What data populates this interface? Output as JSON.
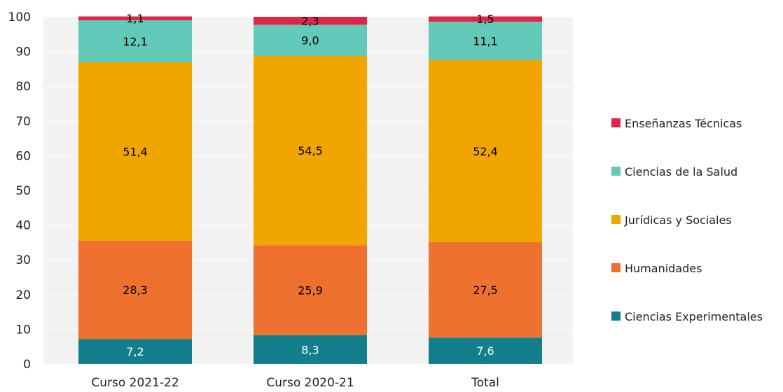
{
  "chart_data": {
    "type": "bar",
    "stacked": true,
    "categories": [
      "Curso 2021-22",
      "Curso 2020-21",
      "Total"
    ],
    "series": [
      {
        "name": "Ciencias Experimentales",
        "values": [
          7.2,
          8.3,
          7.6
        ],
        "labels": [
          "7,2",
          "8,3",
          "7,6"
        ],
        "color": "#137E8C",
        "label_color": "#ffffff"
      },
      {
        "name": "Humanidades",
        "values": [
          28.3,
          25.9,
          27.5
        ],
        "labels": [
          "28,3",
          "25,9",
          "27,5"
        ],
        "color": "#EE7130",
        "label_color": "#000000"
      },
      {
        "name": "Jurídicas y Sociales",
        "values": [
          51.4,
          54.5,
          52.4
        ],
        "labels": [
          "51,4",
          "54,5",
          "52,4"
        ],
        "color": "#F0A500",
        "label_color": "#000000"
      },
      {
        "name": "Ciencias de la Salud",
        "values": [
          12.1,
          9.0,
          11.1
        ],
        "labels": [
          "12,1",
          "9,0",
          "11,1"
        ],
        "color": "#63C9B8",
        "label_color": "#000000"
      },
      {
        "name": "Enseñanzas Técnicas",
        "values": [
          1.1,
          2.3,
          1.5
        ],
        "labels": [
          "1,1",
          "2,3",
          "1,5"
        ],
        "color": "#E0254A",
        "label_color": "#000000"
      }
    ],
    "ylim": [
      0,
      100
    ],
    "yticks": [
      0,
      10,
      20,
      30,
      40,
      50,
      60,
      70,
      80,
      90,
      100
    ],
    "grid": true,
    "plot_background": "#F2F2F2",
    "legend_position": "right",
    "legend_order": [
      "Enseñanzas Técnicas",
      "Ciencias de la Salud",
      "Jurídicas y Sociales",
      "Humanidades",
      "Ciencias Experimentales"
    ],
    "title": "",
    "xlabel": "",
    "ylabel": ""
  }
}
